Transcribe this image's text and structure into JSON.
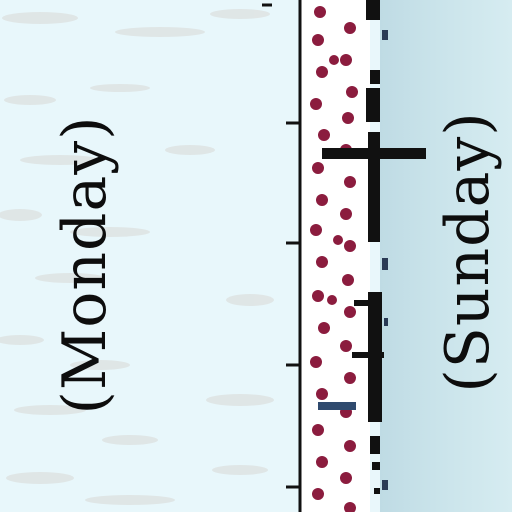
{
  "map": {
    "left_label": "(Monday)",
    "right_label": "(Sunday)"
  },
  "colors": {
    "dot": "#8b1c3e",
    "line": "#111111",
    "water_left": "#e8f7fb",
    "water_right": "#c4dfe7"
  }
}
